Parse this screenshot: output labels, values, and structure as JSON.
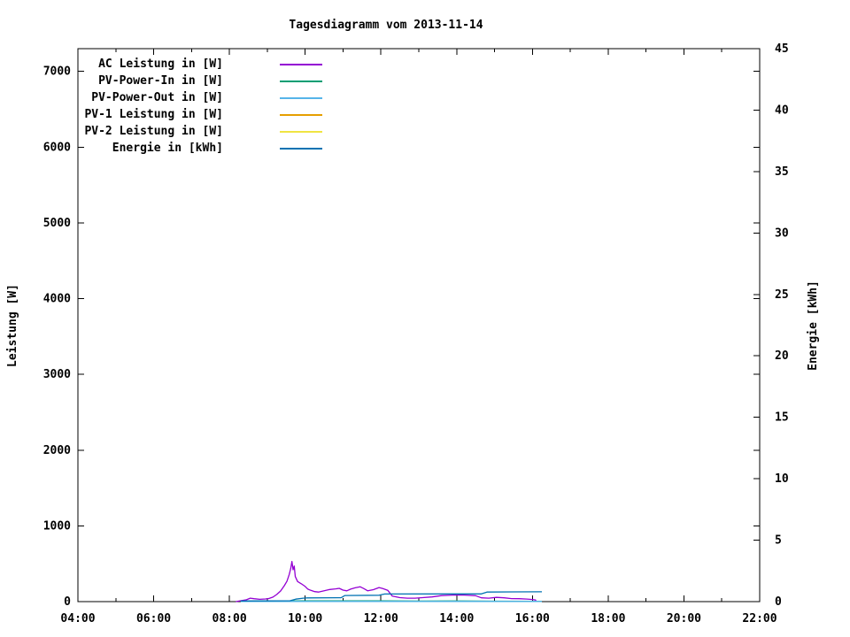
{
  "chart_data": {
    "type": "line",
    "title": "Tagesdiagramm vom 2013-11-14",
    "x": {
      "label": "",
      "start_hour": 4,
      "end_hour": 22,
      "tick_labels": [
        "04:00",
        "06:00",
        "08:00",
        "10:00",
        "12:00",
        "14:00",
        "16:00",
        "18:00",
        "20:00",
        "22:00"
      ],
      "minor_tick_every_hours": 1
    },
    "y_left": {
      "label": "Leistung [W]",
      "ticks": [
        0,
        1000,
        2000,
        3000,
        4000,
        5000,
        6000,
        7000
      ],
      "max": 7300
    },
    "y_right": {
      "label": "Energie [kWh]",
      "ticks": [
        0,
        5,
        10,
        15,
        20,
        25,
        30,
        35,
        40,
        45
      ],
      "max": 45
    },
    "grid": false,
    "legend_position": "top-left-inside",
    "background": "#ffffff",
    "series": [
      {
        "id": "ac",
        "label": "AC Leistung in [W]",
        "color": "#9400d3",
        "axis": "left",
        "points": [
          [
            8.17,
            0
          ],
          [
            8.3,
            12
          ],
          [
            8.45,
            25
          ],
          [
            8.55,
            45
          ],
          [
            8.65,
            38
          ],
          [
            8.8,
            30
          ],
          [
            8.95,
            35
          ],
          [
            9.05,
            42
          ],
          [
            9.15,
            60
          ],
          [
            9.25,
            95
          ],
          [
            9.35,
            140
          ],
          [
            9.45,
            210
          ],
          [
            9.52,
            270
          ],
          [
            9.58,
            360
          ],
          [
            9.62,
            440
          ],
          [
            9.65,
            530
          ],
          [
            9.68,
            420
          ],
          [
            9.71,
            470
          ],
          [
            9.74,
            330
          ],
          [
            9.8,
            265
          ],
          [
            9.9,
            235
          ],
          [
            10.0,
            200
          ],
          [
            10.07,
            165
          ],
          [
            10.15,
            148
          ],
          [
            10.25,
            132
          ],
          [
            10.35,
            126
          ],
          [
            10.5,
            142
          ],
          [
            10.65,
            160
          ],
          [
            10.8,
            168
          ],
          [
            10.9,
            175
          ],
          [
            11.0,
            152
          ],
          [
            11.1,
            143
          ],
          [
            11.2,
            165
          ],
          [
            11.32,
            182
          ],
          [
            11.45,
            196
          ],
          [
            11.55,
            172
          ],
          [
            11.65,
            142
          ],
          [
            11.8,
            158
          ],
          [
            11.95,
            186
          ],
          [
            12.05,
            172
          ],
          [
            12.18,
            150
          ],
          [
            12.3,
            72
          ],
          [
            12.5,
            52
          ],
          [
            12.7,
            45
          ],
          [
            12.9,
            46
          ],
          [
            13.1,
            52
          ],
          [
            13.35,
            62
          ],
          [
            13.6,
            80
          ],
          [
            13.9,
            86
          ],
          [
            14.2,
            86
          ],
          [
            14.5,
            78
          ],
          [
            14.65,
            50
          ],
          [
            14.85,
            45
          ],
          [
            15.05,
            56
          ],
          [
            15.25,
            50
          ],
          [
            15.45,
            40
          ],
          [
            15.65,
            38
          ],
          [
            15.85,
            34
          ],
          [
            16.0,
            28
          ],
          [
            16.08,
            22
          ],
          [
            16.1,
            0
          ]
        ]
      },
      {
        "id": "pv_in",
        "label": "PV-Power-In in [W]",
        "color": "#009e73",
        "axis": "left",
        "points": [
          [
            8.3,
            4
          ],
          [
            9.0,
            7
          ],
          [
            10.0,
            9
          ],
          [
            11.0,
            10
          ],
          [
            12.0,
            9
          ],
          [
            13.0,
            7
          ],
          [
            14.0,
            8
          ],
          [
            15.0,
            6
          ],
          [
            16.0,
            4
          ],
          [
            16.25,
            3
          ]
        ]
      },
      {
        "id": "pv_out",
        "label": "PV-Power-Out in [W]",
        "color": "#56b4e9",
        "axis": "left",
        "points": [
          [
            8.3,
            2
          ],
          [
            16.25,
            2
          ]
        ]
      },
      {
        "id": "pv1",
        "label": "PV-1 Leistung in [W]",
        "color": "#e69f00",
        "axis": "left",
        "points": []
      },
      {
        "id": "pv2",
        "label": "PV-2 Leistung in [W]",
        "color": "#f0e442",
        "axis": "left",
        "points": []
      },
      {
        "id": "energie",
        "label": "Energie in [kWh]",
        "color": "#0072b2",
        "axis": "right",
        "points": [
          [
            8.3,
            0.05
          ],
          [
            9.6,
            0.07
          ],
          [
            9.75,
            0.2
          ],
          [
            9.95,
            0.28
          ],
          [
            10.05,
            0.3
          ],
          [
            10.95,
            0.32
          ],
          [
            11.05,
            0.5
          ],
          [
            11.95,
            0.52
          ],
          [
            12.1,
            0.62
          ],
          [
            14.65,
            0.63
          ],
          [
            14.8,
            0.78
          ],
          [
            15.5,
            0.79
          ],
          [
            16.25,
            0.8
          ]
        ]
      }
    ]
  }
}
